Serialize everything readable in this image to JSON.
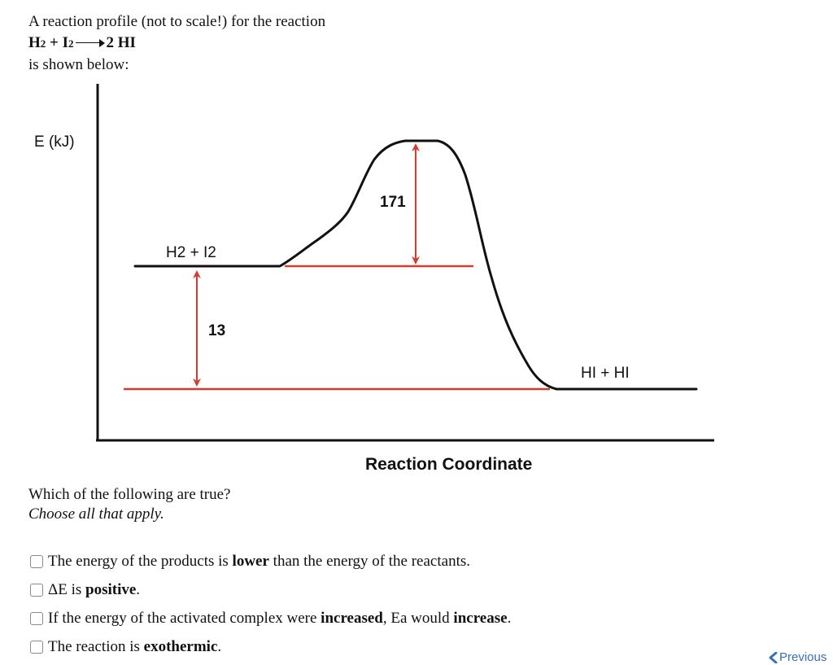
{
  "intro": {
    "line1": "A reaction profile (not to scale!) for the reaction",
    "reactant1": "H",
    "reactant1_sub": "2",
    "plus": " + ",
    "reactant2": "I",
    "reactant2_sub": "2",
    "product": "2 HI",
    "line3": "is shown below:"
  },
  "diagram": {
    "y_axis_label": "E (kJ)",
    "x_axis_label": "Reaction Coordinate",
    "reactant_label": "H2 + I2",
    "product_label": "HI + HI",
    "activation_energy_label": "171",
    "delta_energy_label": "13",
    "colors": {
      "curve": "#111111",
      "annotation": "#d93a2b"
    }
  },
  "question": {
    "prompt": "Which of the following are true?",
    "hint": "Choose all that apply."
  },
  "options": [
    {
      "pre": "The energy of the products is ",
      "bold1": "lower",
      "mid": " than the energy of the reactants.",
      "bold2": "",
      "post": "",
      "checked": false
    },
    {
      "pre": "ΔE is ",
      "bold1": "positive",
      "mid": ".",
      "bold2": "",
      "post": "",
      "checked": false
    },
    {
      "pre": "If the energy of the activated complex were ",
      "bold1": "increased",
      "mid": ", Ea would ",
      "bold2": "increase",
      "post": ".",
      "checked": false
    },
    {
      "pre": "The reaction is ",
      "bold1": "exothermic",
      "mid": ".",
      "bold2": "",
      "post": "",
      "checked": false
    }
  ],
  "navigation": {
    "previous_label": "Previous",
    "previous_icon": "chevron-left-icon"
  }
}
